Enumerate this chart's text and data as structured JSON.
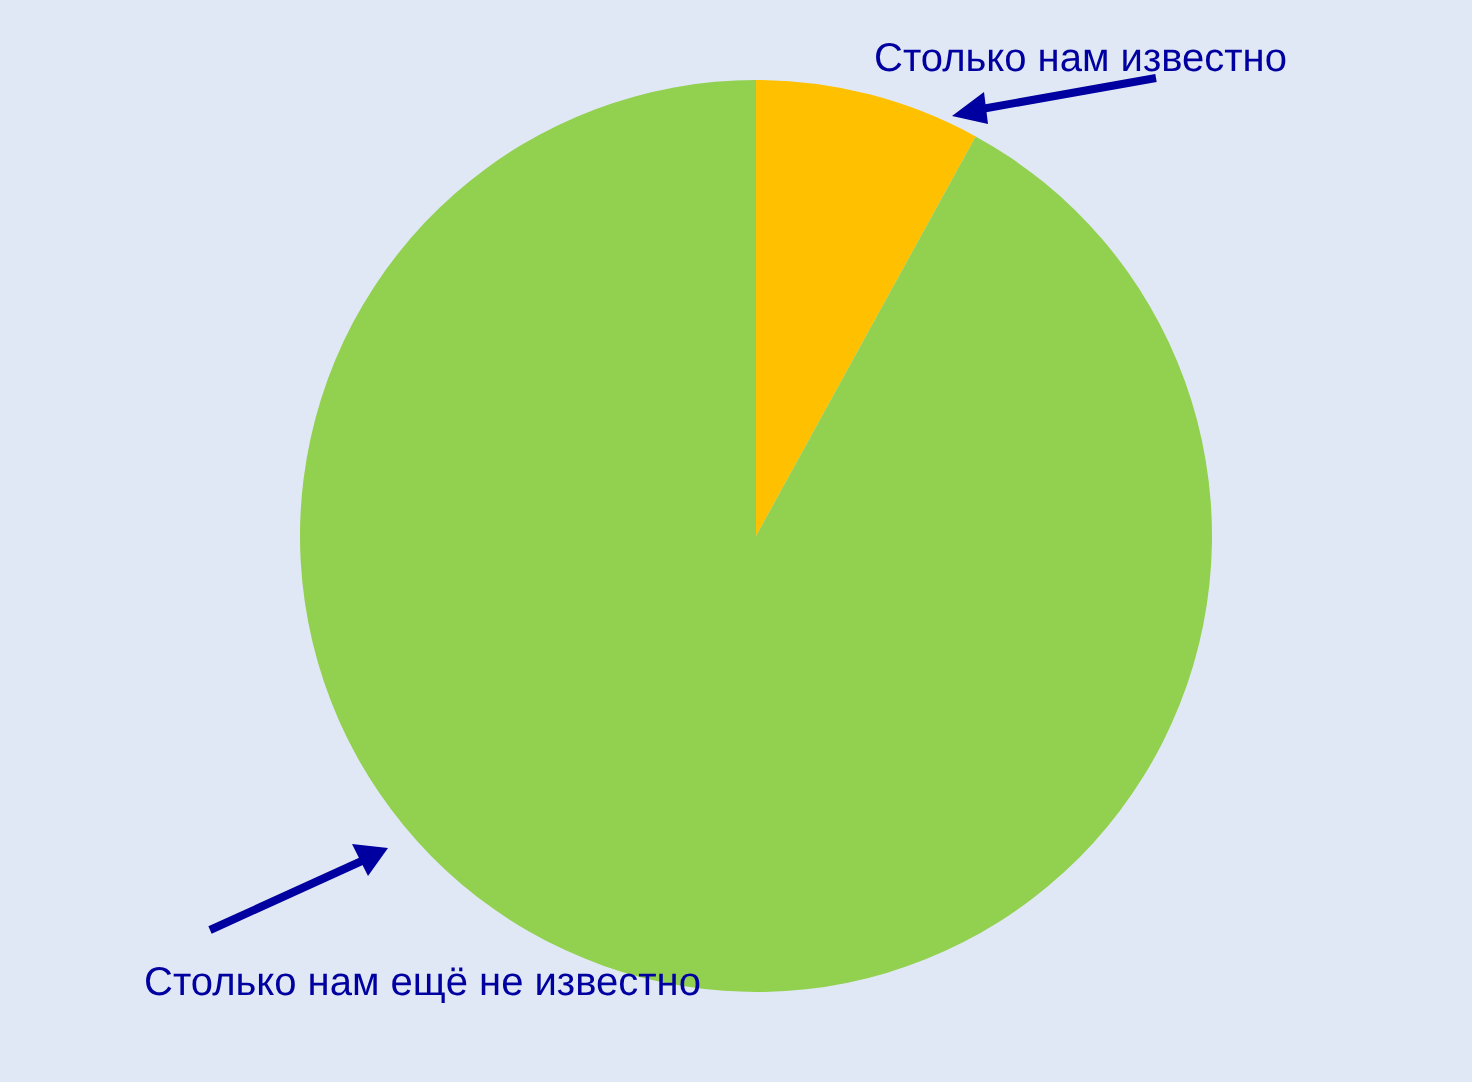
{
  "chart_data": {
    "type": "pie",
    "categories": [
      "Столько нам известно",
      "Столько нам ещё не известно"
    ],
    "values": [
      8,
      92
    ],
    "colors": [
      "#ffc000",
      "#92d050"
    ],
    "legend": false
  }
}
